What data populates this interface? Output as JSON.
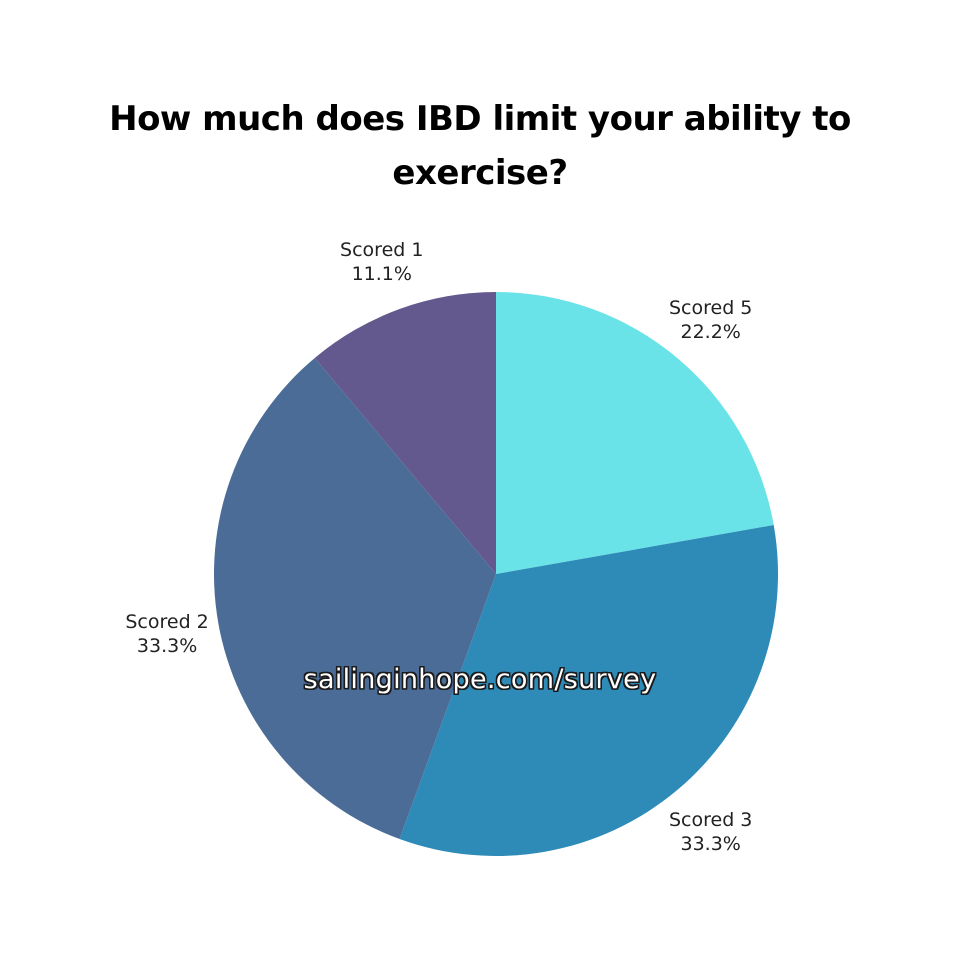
{
  "chart_data": {
    "type": "pie",
    "title": "How much does IBD limit your ability to exercise?",
    "slices": [
      {
        "label": "Scored 5",
        "value": 22.2,
        "value_label": "22.2%",
        "color": "#6ae3e8"
      },
      {
        "label": "Scored 3",
        "value": 33.3,
        "value_label": "33.3%",
        "color": "#2e8bb8"
      },
      {
        "label": "Scored 2",
        "value": 33.3,
        "value_label": "33.3%",
        "color": "#4c6c98"
      },
      {
        "label": "Scored 1",
        "value": 11.1,
        "value_label": "11.1%",
        "color": "#63598e"
      }
    ],
    "start_angle": "12 o'clock",
    "direction": "clockwise"
  },
  "watermark": "sailinginhope.com/survey"
}
